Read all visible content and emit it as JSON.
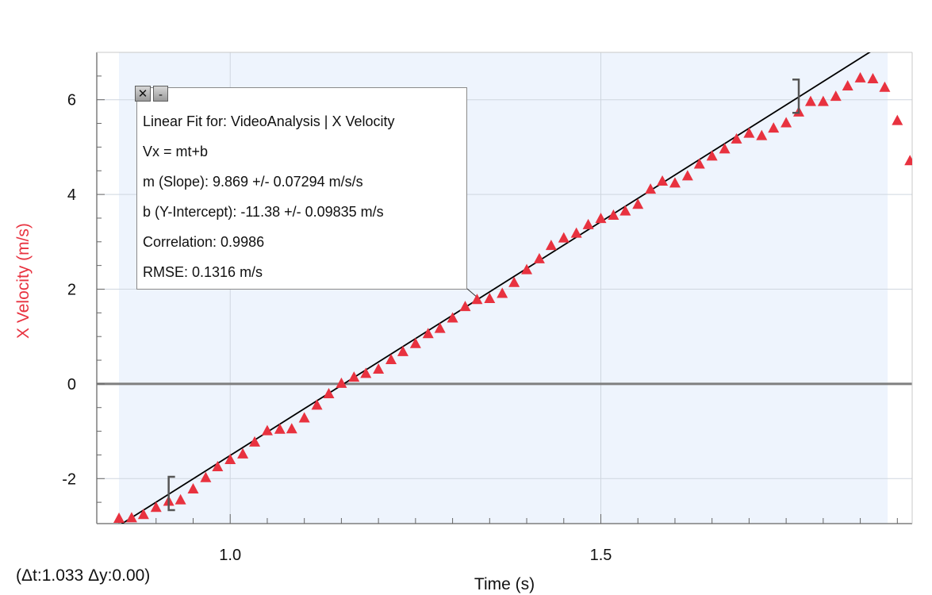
{
  "chart_data": {
    "type": "scatter",
    "xlabel": "Time (s)",
    "ylabel": "X Velocity (m/s)",
    "xlim": [
      0.82,
      1.92
    ],
    "ylim": [
      -2.95,
      7.0
    ],
    "x_ticks": [
      1.0,
      1.5
    ],
    "x_tick_labels": [
      "1.0",
      "1.5"
    ],
    "y_ticks": [
      -2,
      0,
      2,
      4,
      6
    ],
    "y_tick_labels": [
      "-2",
      "0",
      "2",
      "4",
      "6"
    ],
    "selection_range": [
      0.85,
      1.887
    ],
    "fit_bracket_range": [
      0.917,
      1.767
    ],
    "grid": true,
    "marker": "triangle",
    "series": [
      {
        "name": "X Velocity",
        "color": "#e8323f",
        "x": [
          0.85,
          0.867,
          0.883,
          0.9,
          0.917,
          0.933,
          0.95,
          0.967,
          0.983,
          1.0,
          1.017,
          1.033,
          1.05,
          1.067,
          1.083,
          1.1,
          1.117,
          1.133,
          1.15,
          1.167,
          1.183,
          1.2,
          1.217,
          1.233,
          1.25,
          1.267,
          1.283,
          1.3,
          1.317,
          1.333,
          1.35,
          1.367,
          1.383,
          1.4,
          1.417,
          1.433,
          1.45,
          1.467,
          1.483,
          1.5,
          1.517,
          1.533,
          1.55,
          1.567,
          1.583,
          1.6,
          1.617,
          1.633,
          1.65,
          1.667,
          1.683,
          1.7,
          1.717,
          1.733,
          1.75,
          1.767,
          1.783,
          1.8,
          1.817,
          1.833,
          1.85,
          1.867,
          1.883,
          1.9,
          1.917
        ],
        "y": [
          -2.85,
          -2.84,
          -2.77,
          -2.62,
          -2.49,
          -2.46,
          -2.23,
          -1.99,
          -1.76,
          -1.61,
          -1.49,
          -1.24,
          -1.0,
          -0.97,
          -0.96,
          -0.73,
          -0.46,
          -0.22,
          0.0,
          0.13,
          0.21,
          0.3,
          0.5,
          0.67,
          0.84,
          1.05,
          1.16,
          1.38,
          1.62,
          1.77,
          1.79,
          1.9,
          2.13,
          2.4,
          2.63,
          2.91,
          3.07,
          3.17,
          3.35,
          3.48,
          3.55,
          3.64,
          3.78,
          4.1,
          4.27,
          4.23,
          4.38,
          4.63,
          4.8,
          4.95,
          5.16,
          5.28,
          5.23,
          5.39,
          5.5,
          5.73,
          5.95,
          5.95,
          6.06,
          6.28,
          6.45,
          6.43,
          6.25,
          5.55,
          4.7
        ]
      }
    ],
    "fit": {
      "slope": 9.869,
      "intercept": -11.38,
      "color": "#000000"
    }
  },
  "fit_box": {
    "line1": "Linear Fit for: VideoAnalysis | X Velocity",
    "line2": "Vx = mt+b",
    "line3": "m (Slope): 9.869 +/- 0.07294 m/s/s",
    "line4": "b (Y-Intercept): -11.38 +/- 0.09835 m/s",
    "line5": "Correlation: 0.9986",
    "line6": "RMSE: 0.1316 m/s",
    "close_glyph": "✕",
    "minimize_glyph": "-"
  },
  "delta_readout": "(Δt:1.033 Δy:0.00)"
}
